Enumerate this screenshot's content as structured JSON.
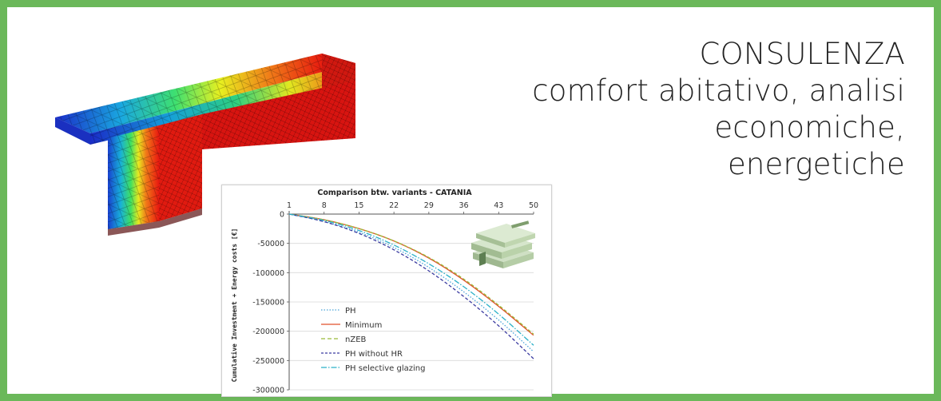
{
  "heading": {
    "lines": [
      "CONSULENZA",
      "comfort abitativo, analisi",
      "economiche,",
      "energetiche"
    ]
  },
  "thermal_image": {
    "icon": "thermal-bridge-simulation"
  },
  "money_image": {
    "icon": "euro-banknotes-stack"
  },
  "colors": {
    "frame": "#6bb85a",
    "PH": "#4aa3d8",
    "Minimum": "#e0502a",
    "nZEB": "#9bbb3a",
    "PH without HR": "#3a3aa0",
    "PH selective glazing": "#2bb0c8"
  },
  "chart_data": {
    "type": "line",
    "title": "Comparison btw. variants - CATANIA",
    "xlabel": "",
    "ylabel": "Cumulative Investment + Energy costs [€]",
    "x": [
      1,
      8,
      15,
      22,
      29,
      36,
      43,
      50
    ],
    "xticks": [
      "1",
      "8",
      "15",
      "22",
      "29",
      "36",
      "43",
      "50"
    ],
    "yticks": [
      "0",
      "-50000",
      "-100000",
      "-150000",
      "-200000",
      "-250000",
      "-300000"
    ],
    "xlim": [
      1,
      50
    ],
    "ylim": [
      -300000,
      0
    ],
    "x_axis_position": "top",
    "legend_position": "bottom-left",
    "series": [
      {
        "name": "PH",
        "dash": "dotted",
        "values": [
          0,
          -12000,
          -30000,
          -56000,
          -90000,
          -132000,
          -180000,
          -235000
        ]
      },
      {
        "name": "Minimum",
        "dash": "solid",
        "values": [
          0,
          -9000,
          -24000,
          -45000,
          -74000,
          -112000,
          -157000,
          -207000
        ]
      },
      {
        "name": "nZEB",
        "dash": "dashed",
        "values": [
          0,
          -9000,
          -24000,
          -45000,
          -73000,
          -110000,
          -155000,
          -205000
        ]
      },
      {
        "name": "PH without HR",
        "dash": "dashed",
        "values": [
          0,
          -12000,
          -32000,
          -60000,
          -96000,
          -140000,
          -190000,
          -247000
        ]
      },
      {
        "name": "PH selective glazing",
        "dash": "dashdot",
        "values": [
          0,
          -10000,
          -27000,
          -52000,
          -84000,
          -123000,
          -170000,
          -224000
        ]
      }
    ]
  }
}
